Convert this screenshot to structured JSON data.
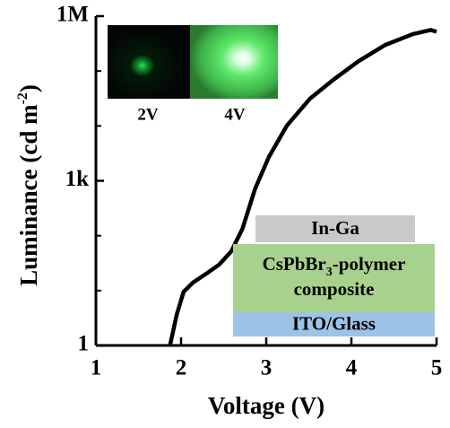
{
  "chart_data": {
    "type": "line",
    "xlabel": "Voltage (V)",
    "ylabel": [
      "Luminance (cd m",
      "-2",
      ")"
    ],
    "x": [
      1.87,
      1.95,
      2.03,
      2.14,
      2.29,
      2.45,
      2.59,
      2.72,
      2.87,
      3.03,
      3.24,
      3.51,
      3.77,
      4.08,
      4.4,
      4.72,
      4.93,
      5.0
    ],
    "series": [
      {
        "color": "#000000",
        "values": [
          1,
          3.7,
          9.5,
          14,
          20,
          30,
          52,
          133,
          720,
          2700,
          10000,
          31000,
          66000,
          150000,
          300000,
          470000,
          560000,
          520000
        ]
      }
    ],
    "xlim": [
      1,
      5
    ],
    "xticks": [
      1,
      2,
      3,
      4,
      5
    ],
    "ylim": [
      1,
      1000000
    ],
    "log_y": true,
    "yticks": [
      1,
      {
        "value": 1000,
        "label": "1k"
      },
      {
        "value": 1000000,
        "label": "1M"
      }
    ],
    "yminorticks": [
      10,
      100,
      10000,
      100000
    ],
    "inset_labels": [
      "2V",
      "4V"
    ],
    "layers": [
      {
        "text": [
          "In-Ga"
        ],
        "color": "#c9c9c9"
      },
      {
        "text": [
          "CsPbBr",
          "3",
          "-polymer"
        ],
        "line2": "composite",
        "color": "#a9d18e"
      },
      {
        "text": [
          "ITO/Glass"
        ],
        "color": "#9dc3e6"
      }
    ]
  }
}
